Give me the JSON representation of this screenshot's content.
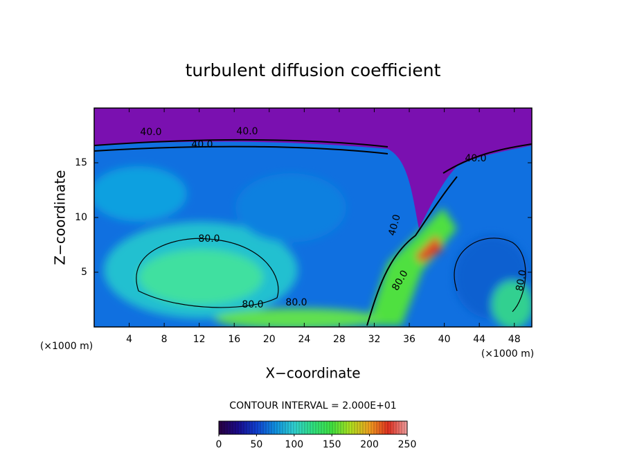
{
  "chart_data": {
    "type": "contour",
    "title": "turbulent diffusion coefficient",
    "x_label": "X−coordinate",
    "y_label": "Z−coordinate",
    "x_unit_label": "(×1000 m)",
    "y_unit_label": "(×1000 m)",
    "xlim": [
      0,
      50
    ],
    "ylim": [
      0,
      20
    ],
    "xticks": [
      4,
      8,
      12,
      16,
      20,
      24,
      28,
      32,
      36,
      40,
      44,
      48
    ],
    "yticks": [
      5,
      10,
      15
    ],
    "contour_interval_label": "CONTOUR INTERVAL = 2.000E+01",
    "contour_labels": [
      "40.0",
      "40.0",
      "40.0",
      "40.0",
      "80.0",
      "80.0",
      "80.0",
      "40.0",
      "80.0",
      "80.0"
    ],
    "colorbar": {
      "lim": [
        0,
        250
      ],
      "ticks": [
        0,
        50,
        100,
        150,
        200,
        250
      ],
      "colors": [
        "#2a0040",
        "#1a0a8a",
        "#1040d0",
        "#1090e0",
        "#30d0d0",
        "#30e080",
        "#40e040",
        "#b0e020",
        "#f0a020",
        "#e03020",
        "#f0a0a0"
      ]
    }
  }
}
